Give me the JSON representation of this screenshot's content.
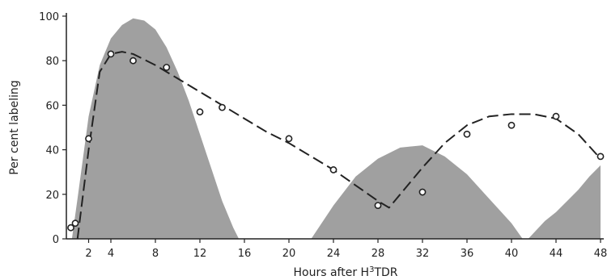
{
  "chart_data": {
    "type": "line",
    "title": "",
    "xlabel": "Hours after H",
    "xlabel_sup": "3",
    "xlabel_rest": "TDR",
    "ylabel": "Per cent labeling",
    "xlim": [
      0,
      48
    ],
    "ylim": [
      0,
      100
    ],
    "x_ticks": [
      2,
      4,
      8,
      12,
      16,
      20,
      24,
      28,
      32,
      36,
      40,
      44,
      48
    ],
    "y_ticks": [
      0,
      20,
      40,
      60,
      80,
      100
    ],
    "grid": false,
    "colors": {
      "shade": "#8f8f8f",
      "line": "#222222",
      "points": "#222222"
    },
    "series": [
      {
        "kind": "scatter",
        "marker": "open-circle",
        "x": [
          0.4,
          0.8,
          2,
          4,
          6,
          9,
          12,
          14,
          20,
          24,
          28,
          32,
          36,
          40,
          44,
          48
        ],
        "y": [
          5,
          7,
          45,
          83,
          80,
          77,
          57,
          59,
          45,
          31,
          15,
          21,
          47,
          51,
          55,
          37
        ]
      },
      {
        "kind": "line",
        "style": "dashed",
        "x": [
          1,
          2,
          3,
          4,
          5,
          6,
          8,
          10,
          12,
          14,
          16,
          18,
          20,
          22,
          24,
          26,
          28,
          29,
          30,
          32,
          34,
          36,
          38,
          40,
          42,
          44,
          46,
          48
        ],
        "y": [
          0,
          40,
          75,
          83,
          84,
          83,
          78,
          72,
          66,
          60,
          54,
          48,
          43,
          37,
          31,
          24,
          17,
          14,
          20,
          32,
          43,
          51,
          55,
          56,
          56,
          54,
          47,
          36
        ]
      },
      {
        "kind": "area",
        "x": [
          0.5,
          1,
          2,
          3,
          4,
          5,
          6,
          7,
          8,
          9,
          10,
          11,
          12,
          13,
          14,
          15,
          15.5
        ],
        "y": [
          0,
          18,
          55,
          78,
          90,
          96,
          99,
          98,
          94,
          86,
          75,
          62,
          47,
          32,
          17,
          5,
          0
        ]
      },
      {
        "kind": "area",
        "x": [
          22,
          24,
          26,
          28,
          30,
          32,
          34,
          36,
          38,
          40,
          41
        ],
        "y": [
          0,
          15,
          28,
          36,
          41,
          42,
          37,
          29,
          18,
          7,
          0
        ]
      },
      {
        "kind": "area",
        "x": [
          41.5,
          43,
          44,
          45,
          46,
          47,
          48
        ],
        "y": [
          0,
          8,
          12,
          17,
          22,
          28,
          33
        ]
      }
    ]
  }
}
